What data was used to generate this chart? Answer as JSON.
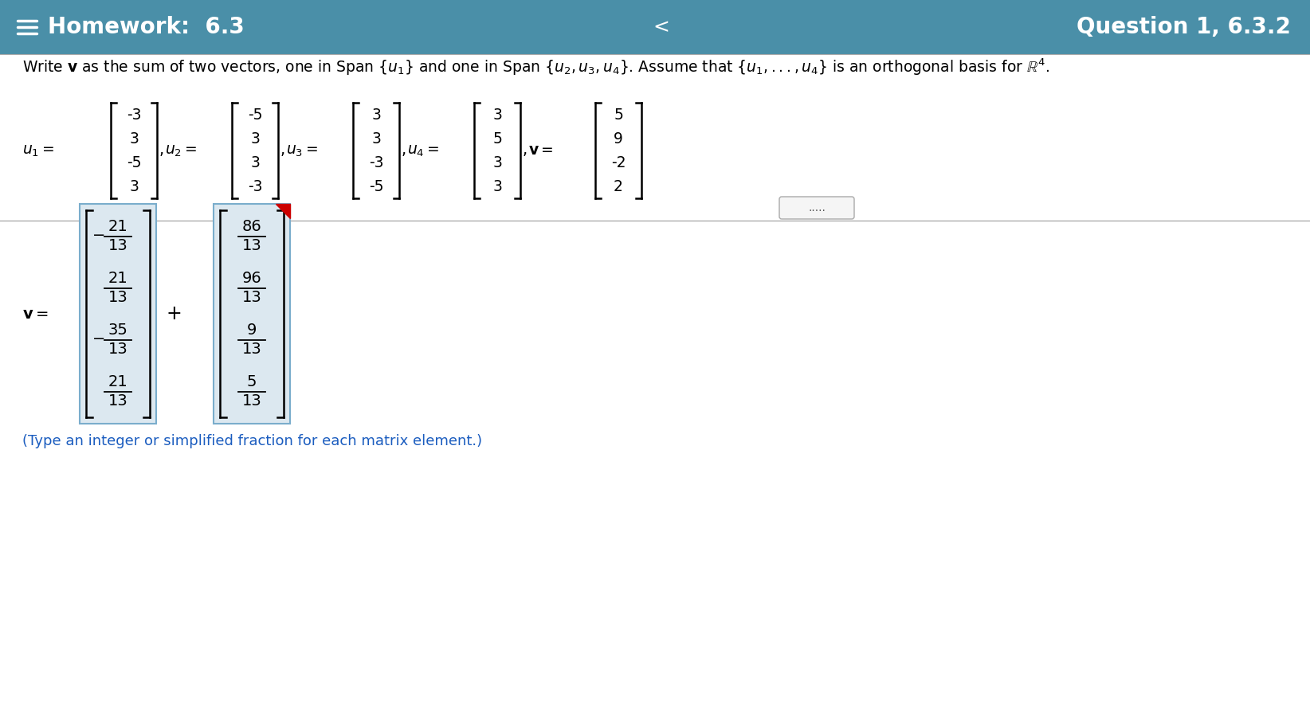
{
  "header_bg": "#4a8fa8",
  "header_title": "Homework:  6.3",
  "header_question": "Question 1, 6.3.2",
  "body_bg": "#ffffff",
  "u1": [
    "-3",
    "3",
    "-5",
    "3"
  ],
  "u2": [
    "-5",
    "3",
    "3",
    "-3"
  ],
  "u3": [
    "3",
    "3",
    "-3",
    "-5"
  ],
  "u4": [
    "3",
    "5",
    "3",
    "3"
  ],
  "v_vec": [
    "5",
    "9",
    "-2",
    "2"
  ],
  "result_vec1": [
    "-21/13",
    "21/13",
    "-35/13",
    "21/13"
  ],
  "result_vec2": [
    "86/13",
    "96/13",
    "9/13",
    "5/13"
  ],
  "footer_text": "(Type an integer or simplified fraction for each matrix element.)",
  "footer_color": "#1a5cbf",
  "dots_text": ".....",
  "vec_bg": "#dce8f0"
}
